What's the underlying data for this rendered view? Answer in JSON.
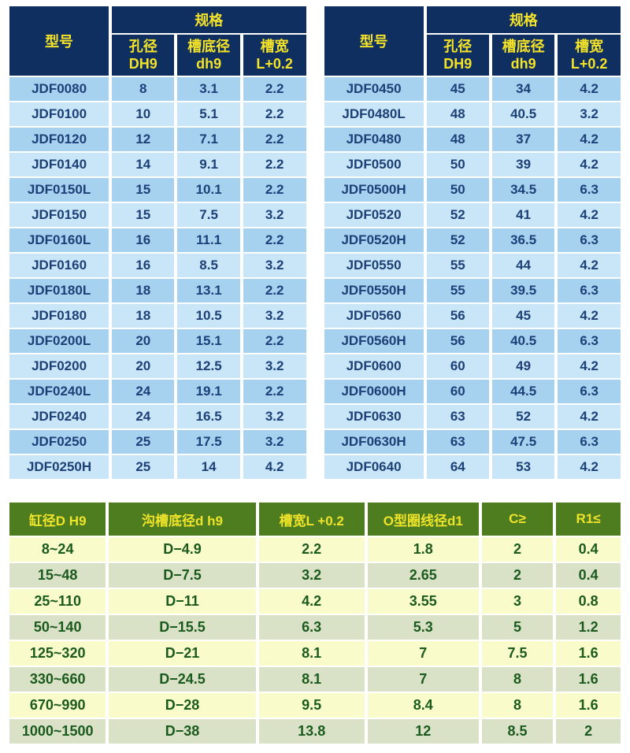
{
  "colors": {
    "header_navy": "#0f2f60",
    "header_yellow": "#f4e329",
    "row_blue_dark": "#a6d2ef",
    "row_blue_light": "#c8e6f8",
    "row_text_navy": "#1c4077",
    "green_header": "#4d7d1f",
    "green_header_yellow": "#f0e42a",
    "row_cream": "#fafbcb",
    "row_sage": "#d9e2c7",
    "row_text_green": "#1b5a1d"
  },
  "spec_header": {
    "model": "型号",
    "spec": "规格",
    "sub": [
      {
        "l1": "孔径",
        "l2": "DH9"
      },
      {
        "l1": "槽底径",
        "l2": "dh9"
      },
      {
        "l1": "槽宽",
        "l2": "L+0.2"
      }
    ]
  },
  "spec_tables": [
    {
      "name": "left",
      "rows": [
        [
          "JDF0080",
          "8",
          "3.1",
          "2.2"
        ],
        [
          "JDF0100",
          "10",
          "5.1",
          "2.2"
        ],
        [
          "JDF0120",
          "12",
          "7.1",
          "2.2"
        ],
        [
          "JDF0140",
          "14",
          "9.1",
          "2.2"
        ],
        [
          "JDF0150L",
          "15",
          "10.1",
          "2.2"
        ],
        [
          "JDF0150",
          "15",
          "7.5",
          "3.2"
        ],
        [
          "JDF0160L",
          "16",
          "11.1",
          "2.2"
        ],
        [
          "JDF0160",
          "16",
          "8.5",
          "3.2"
        ],
        [
          "JDF0180L",
          "18",
          "13.1",
          "2.2"
        ],
        [
          "JDF0180",
          "18",
          "10.5",
          "3.2"
        ],
        [
          "JDF0200L",
          "20",
          "15.1",
          "2.2"
        ],
        [
          "JDF0200",
          "20",
          "12.5",
          "3.2"
        ],
        [
          "JDF0240L",
          "24",
          "19.1",
          "2.2"
        ],
        [
          "JDF0240",
          "24",
          "16.5",
          "3.2"
        ],
        [
          "JDF0250",
          "25",
          "17.5",
          "3.2"
        ],
        [
          "JDF0250H",
          "25",
          "14",
          "4.2"
        ]
      ]
    },
    {
      "name": "right",
      "rows": [
        [
          "JDF0450",
          "45",
          "34",
          "4.2"
        ],
        [
          "JDF0480L",
          "48",
          "40.5",
          "3.2"
        ],
        [
          "JDF0480",
          "48",
          "37",
          "4.2"
        ],
        [
          "JDF0500",
          "50",
          "39",
          "4.2"
        ],
        [
          "JDF0500H",
          "50",
          "34.5",
          "6.3"
        ],
        [
          "JDF0520",
          "52",
          "41",
          "4.2"
        ],
        [
          "JDF0520H",
          "52",
          "36.5",
          "6.3"
        ],
        [
          "JDF0550",
          "55",
          "44",
          "4.2"
        ],
        [
          "JDF0550H",
          "55",
          "39.5",
          "6.3"
        ],
        [
          "JDF0560",
          "56",
          "45",
          "4.2"
        ],
        [
          "JDF0560H",
          "56",
          "40.5",
          "6.3"
        ],
        [
          "JDF0600",
          "60",
          "49",
          "4.2"
        ],
        [
          "JDF0600H",
          "60",
          "44.5",
          "6.3"
        ],
        [
          "JDF0630",
          "63",
          "52",
          "4.2"
        ],
        [
          "JDF0630H",
          "63",
          "47.5",
          "6.3"
        ],
        [
          "JDF0640",
          "64",
          "53",
          "4.2"
        ]
      ]
    }
  ],
  "groove_table": {
    "headers": [
      "缸径D H9",
      "沟槽底径d h9",
      "槽宽L +0.2",
      "O型圈线径d1",
      "C≥",
      "R1≤"
    ],
    "rows": [
      [
        "8~24",
        "D−4.9",
        "2.2",
        "1.8",
        "2",
        "0.4"
      ],
      [
        "15~48",
        "D−7.5",
        "3.2",
        "2.65",
        "2",
        "0.4"
      ],
      [
        "25~110",
        "D−11",
        "4.2",
        "3.55",
        "3",
        "0.8"
      ],
      [
        "50~140",
        "D−15.5",
        "6.3",
        "5.3",
        "5",
        "1.2"
      ],
      [
        "125~320",
        "D−21",
        "8.1",
        "7",
        "7.5",
        "1.6"
      ],
      [
        "330~660",
        "D−24.5",
        "8.1",
        "7",
        "8",
        "1.6"
      ],
      [
        "670~990",
        "D−28",
        "9.5",
        "8.4",
        "8",
        "1.6"
      ],
      [
        "1000~1500",
        "D−38",
        "13.8",
        "12",
        "8.5",
        "2"
      ]
    ]
  }
}
